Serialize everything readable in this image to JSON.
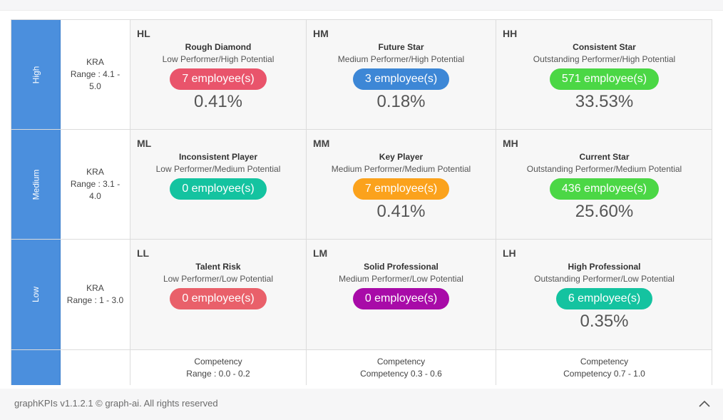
{
  "rows": [
    {
      "side_label": "High",
      "kra_label": "KRA",
      "kra_range": "Range : 4.1 - 5.0",
      "cells": [
        {
          "code": "HL",
          "title": "Rough Diamond",
          "subtitle": "Low Performer/High Potential",
          "count": "7 employee(s)",
          "percent": "0.41%",
          "color": "#e9546b"
        },
        {
          "code": "HM",
          "title": "Future Star",
          "subtitle": "Medium Performer/High Potential",
          "count": "3 employee(s)",
          "percent": "0.18%",
          "color": "#3d87d6"
        },
        {
          "code": "HH",
          "title": "Consistent Star",
          "subtitle": "Outstanding Performer/High Potential",
          "count": "571 employee(s)",
          "percent": "33.53%",
          "color": "#4bd745"
        }
      ]
    },
    {
      "side_label": "Medium",
      "kra_label": "KRA",
      "kra_range": "Range : 3.1 - 4.0",
      "cells": [
        {
          "code": "ML",
          "title": "Inconsistent Player",
          "subtitle": "Low Performer/Medium Potential",
          "count": "0 employee(s)",
          "percent": "",
          "color": "#14c3a0"
        },
        {
          "code": "MM",
          "title": "Key Player",
          "subtitle": "Medium Performer/Medium Potential",
          "count": "7 employee(s)",
          "percent": "0.41%",
          "color": "#fba21c"
        },
        {
          "code": "MH",
          "title": "Current Star",
          "subtitle": "Outstanding Performer/Medium Potential",
          "count": "436 employee(s)",
          "percent": "25.60%",
          "color": "#4bd745"
        }
      ]
    },
    {
      "side_label": "Low",
      "kra_label": "KRA",
      "kra_range": "Range : 1 - 3.0",
      "cells": [
        {
          "code": "LL",
          "title": "Talent Risk",
          "subtitle": "Low Performer/Low Potential",
          "count": "0 employee(s)",
          "percent": "",
          "color": "#e9606a"
        },
        {
          "code": "LM",
          "title": "Solid Professional",
          "subtitle": "Medium Performer/Low Potential",
          "count": "0 employee(s)",
          "percent": "",
          "color": "#a80ba8"
        },
        {
          "code": "LH",
          "title": "High Professional",
          "subtitle": "Outstanding Performer/Low Potential",
          "count": "6 employee(s)",
          "percent": "0.35%",
          "color": "#14c3a0"
        }
      ]
    }
  ],
  "competency": [
    {
      "label": "Competency",
      "range": "Range : 0.0 - 0.2"
    },
    {
      "label": "Competency",
      "range": "Competency 0.3 - 0.6"
    },
    {
      "label": "Competency",
      "range": "Competency 0.7 - 1.0"
    }
  ],
  "footer": {
    "text": "graphKPIs v1.1.2.1 © graph-ai. All rights reserved"
  },
  "icons": {
    "scroll_top": "chevron-up-icon"
  }
}
